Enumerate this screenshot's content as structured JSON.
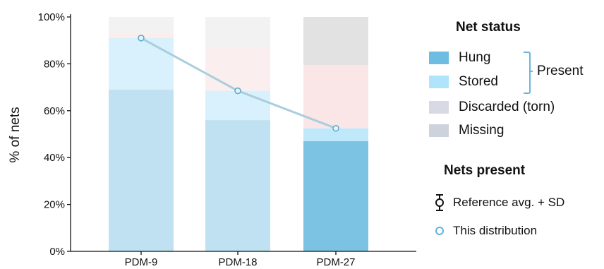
{
  "chart_data": {
    "type": "bar",
    "stacked": true,
    "categories": [
      "PDM-9",
      "PDM-18",
      "PDM-27"
    ],
    "series": [
      {
        "name": "Hung",
        "values": [
          69,
          56,
          47
        ],
        "colors": [
          "#bfe1f1",
          "#bfe1f1",
          "#7cc3e3"
        ]
      },
      {
        "name": "Stored",
        "values": [
          22,
          12.5,
          5.5
        ],
        "colors": [
          "#d9f1fc",
          "#d9f1fc",
          "#bfe9fb"
        ]
      },
      {
        "name": "Discarded (torn)",
        "values": [
          2,
          18.5,
          27
        ],
        "colors": [
          "#fcecec",
          "#fbeeee",
          "#fae6e6"
        ]
      },
      {
        "name": "Missing",
        "values": [
          7,
          13,
          20.5
        ],
        "colors": [
          "#f2f2f2",
          "#f2f2f2",
          "#e2e2e2"
        ]
      }
    ],
    "this_distribution": [
      91,
      68.5,
      52.5
    ],
    "ylabel": "% of nets",
    "ylim": [
      0,
      100
    ],
    "yticks": [
      "0%",
      "20%",
      "40%",
      "60%",
      "80%",
      "100%"
    ]
  },
  "legend": {
    "status_title": "Net status",
    "items": [
      {
        "label": "Hung",
        "color": "#6dbde2"
      },
      {
        "label": "Stored",
        "color": "#b0e4fb"
      },
      {
        "label": "Discarded (torn)",
        "color": "#d9d9e6"
      },
      {
        "label": "Missing",
        "color": "#cdd3dc"
      }
    ],
    "present_label": "Present",
    "present_title": "Nets present",
    "reference_label": "Reference avg. + SD",
    "distribution_label": "This distribution"
  },
  "colors": {
    "line": "#a9cee0",
    "marker": "#5fa8c8",
    "axis": "#111111"
  }
}
